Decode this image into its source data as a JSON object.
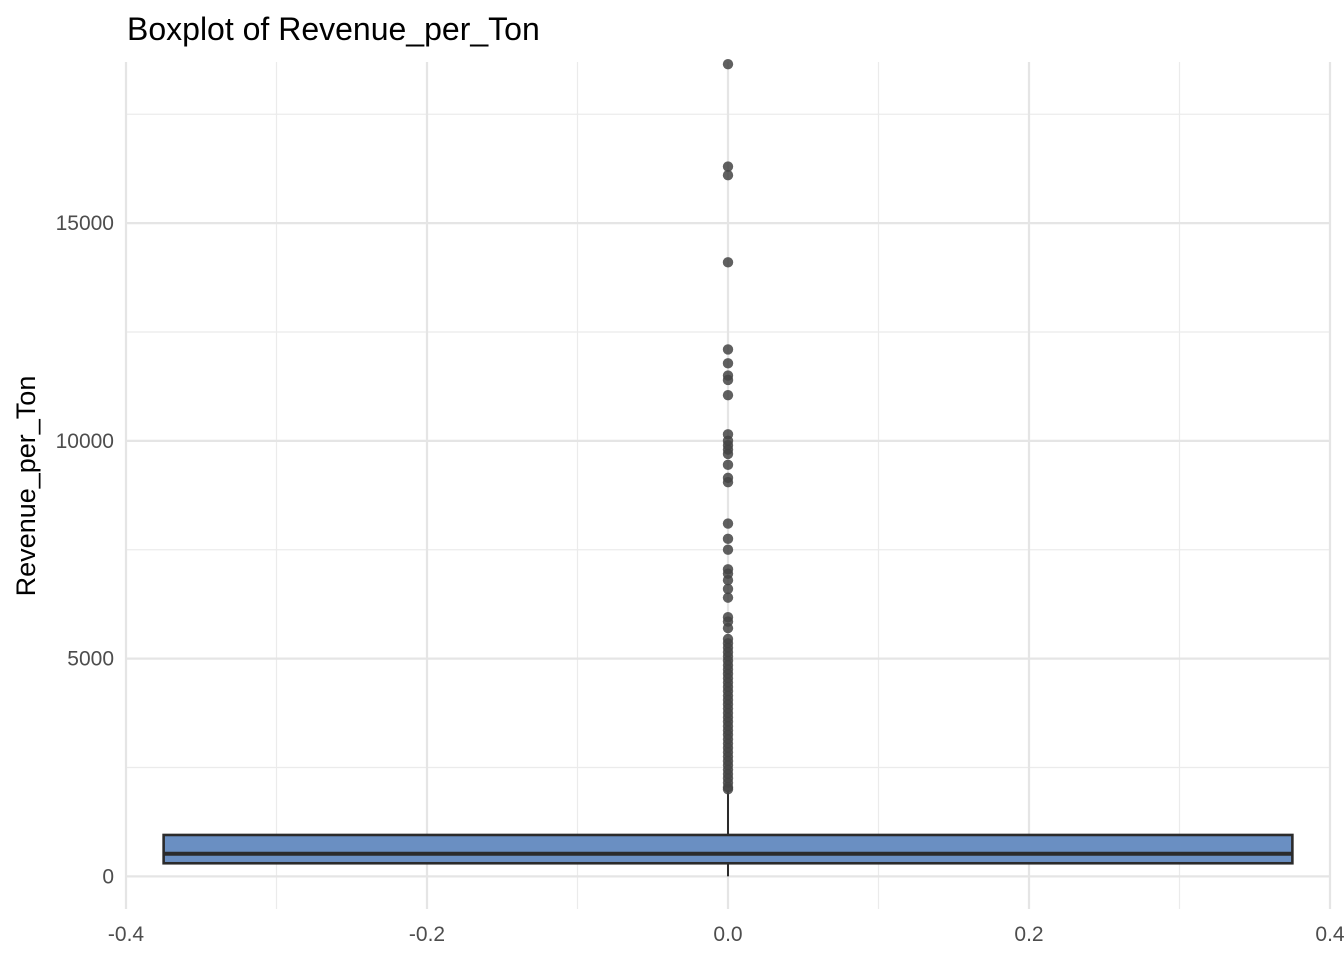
{
  "chart_data": {
    "type": "boxplot",
    "title": "Boxplot of Revenue_per_Ton",
    "xlabel": "",
    "ylabel": "Revenue_per_Ton",
    "xlim": [
      -0.4,
      0.4
    ],
    "ylim": [
      -750,
      18700
    ],
    "x_ticks": [
      "-0.4",
      "-0.2",
      "0.0",
      "0.2",
      "0.4"
    ],
    "x_tick_values": [
      -0.4,
      -0.2,
      0.0,
      0.2,
      0.4
    ],
    "y_ticks": [
      "0",
      "5000",
      "10000",
      "15000"
    ],
    "y_tick_values": [
      0,
      5000,
      10000,
      15000
    ],
    "x_minor": [
      -0.3,
      -0.1,
      0.1,
      0.3
    ],
    "y_minor": [
      2500,
      7500,
      12500,
      17500
    ],
    "grid": true,
    "box": {
      "x": 0.0,
      "x_min": -0.375,
      "x_max": 0.375,
      "whisker_low": 0,
      "q1": 300,
      "median": 520,
      "q3": 950,
      "whisker_high": 1980,
      "fill_color": "#6a8fc2",
      "line_color": "#2b2b2b"
    },
    "outliers": {
      "x": 0.0,
      "color": "#444444",
      "values": [
        18650,
        16300,
        16100,
        14100,
        12100,
        11780,
        11500,
        11400,
        11050,
        10150,
        10000,
        9900,
        9800,
        9700,
        9450,
        9150,
        9050,
        8100,
        7750,
        7500,
        7050,
        6950,
        6800,
        6600,
        6400,
        5950,
        5850,
        5700,
        5450,
        5350,
        5250,
        5150,
        5050,
        4950,
        4850,
        4750,
        4650,
        4550,
        4450,
        4350,
        4250,
        4150,
        4050,
        3950,
        3850,
        3750,
        3650,
        3550,
        3450,
        3350,
        3250,
        3150,
        3050,
        2950,
        2850,
        2750,
        2650,
        2550,
        2450,
        2350,
        2250,
        2150,
        2050,
        2000
      ]
    }
  }
}
